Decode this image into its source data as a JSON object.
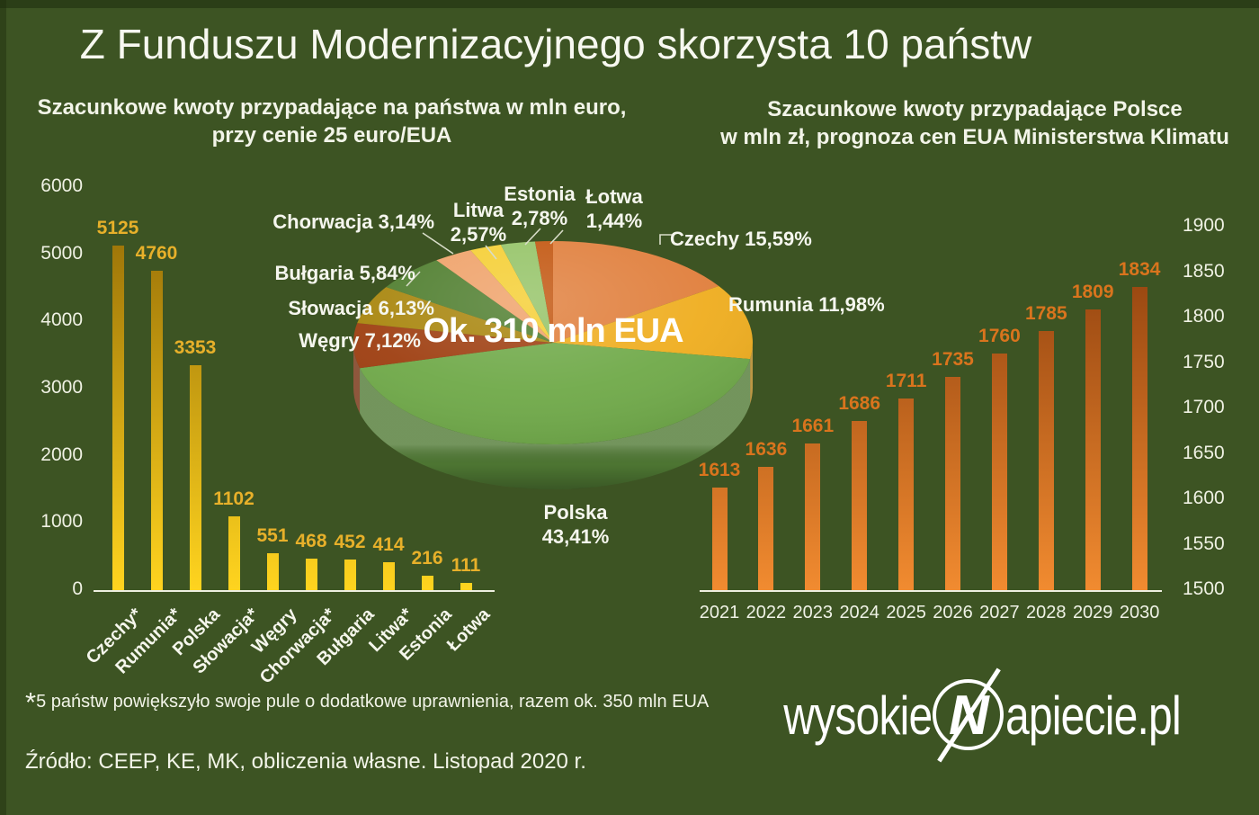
{
  "title": "Z Funduszu Modernizacyjnego skorzysta 10 państw",
  "theme": {
    "background": "#3D5423",
    "text_color": "#F2F4E8",
    "axis_line_color": "#EDEFE0",
    "left_bar_gradient": [
      "#8F6705",
      "#FFD41F"
    ],
    "right_bar_gradient": [
      "#8A3C0C",
      "#F18B30"
    ],
    "left_value_color": "#E7B02A",
    "right_value_color": "#D9741D"
  },
  "chart_data": [
    {
      "type": "bar",
      "title_lines": [
        "Szacunkowe kwoty przypadające  na państwa w mln euro,",
        "przy cenie 25 euro/EUA"
      ],
      "categories": [
        "Czechy*",
        "Rumunia*",
        "Polska",
        "Słowacja*",
        "Węgry",
        "Chorwacja*",
        "Bułgaria",
        "Litwa*",
        "Estonia",
        "Łotwa"
      ],
      "values": [
        5125,
        4760,
        3353,
        1102,
        551,
        468,
        452,
        414,
        216,
        111
      ],
      "ylim": [
        0,
        6000
      ],
      "yticks": [
        0,
        1000,
        2000,
        3000,
        4000,
        5000,
        6000
      ],
      "legend": "none",
      "grid": false
    },
    {
      "type": "pie",
      "labels": [
        "Czechy",
        "Rumunia",
        "Polska",
        "Węgry",
        "Słowacja",
        "Bułgaria",
        "Chorwacja",
        "Litwa",
        "Estonia",
        "Łotwa"
      ],
      "values": [
        15.59,
        11.98,
        43.41,
        7.12,
        6.13,
        5.84,
        3.14,
        2.57,
        2.78,
        1.44
      ],
      "percent_display": [
        "15,59%",
        "11,98%",
        "43,41%",
        "7,12%",
        "6,13%",
        "5,84%",
        "3,14%",
        "2,57%",
        "2,78%",
        "1,44%"
      ],
      "colors": [
        "#E07E3B",
        "#EFAD1E",
        "#6FA948",
        "#9E3E10",
        "#A8850C",
        "#4E7D2D",
        "#EFA168",
        "#F5CE32",
        "#94C366",
        "#C2550E"
      ],
      "center_label": "Ok. 310 mln EUA"
    },
    {
      "type": "bar",
      "title_lines": [
        "Szacunkowe kwoty przypadające Polsce",
        "w mln zł, prognoza cen EUA Ministerstwa Klimatu"
      ],
      "categories": [
        "2021",
        "2022",
        "2023",
        "2024",
        "2025",
        "2026",
        "2027",
        "2028",
        "2029",
        "2030"
      ],
      "values": [
        1613,
        1636,
        1661,
        1686,
        1711,
        1735,
        1760,
        1785,
        1809,
        1834
      ],
      "ylim": [
        1500,
        1900
      ],
      "yticks": [
        1500,
        1550,
        1600,
        1650,
        1700,
        1750,
        1800,
        1850,
        1900
      ],
      "legend": "none",
      "grid": false
    }
  ],
  "footnote_star": "*",
  "footnote": "5 państw powiększyło swoje pule o dodatkowe uprawnienia, razem ok. 350 mln EUA",
  "source": "Źródło: CEEP, KE, MK, obliczenia własne. Listopad 2020 r.",
  "logo": {
    "prefix": "wysokie",
    "n": "N",
    "suffix": "apiecie.pl"
  }
}
